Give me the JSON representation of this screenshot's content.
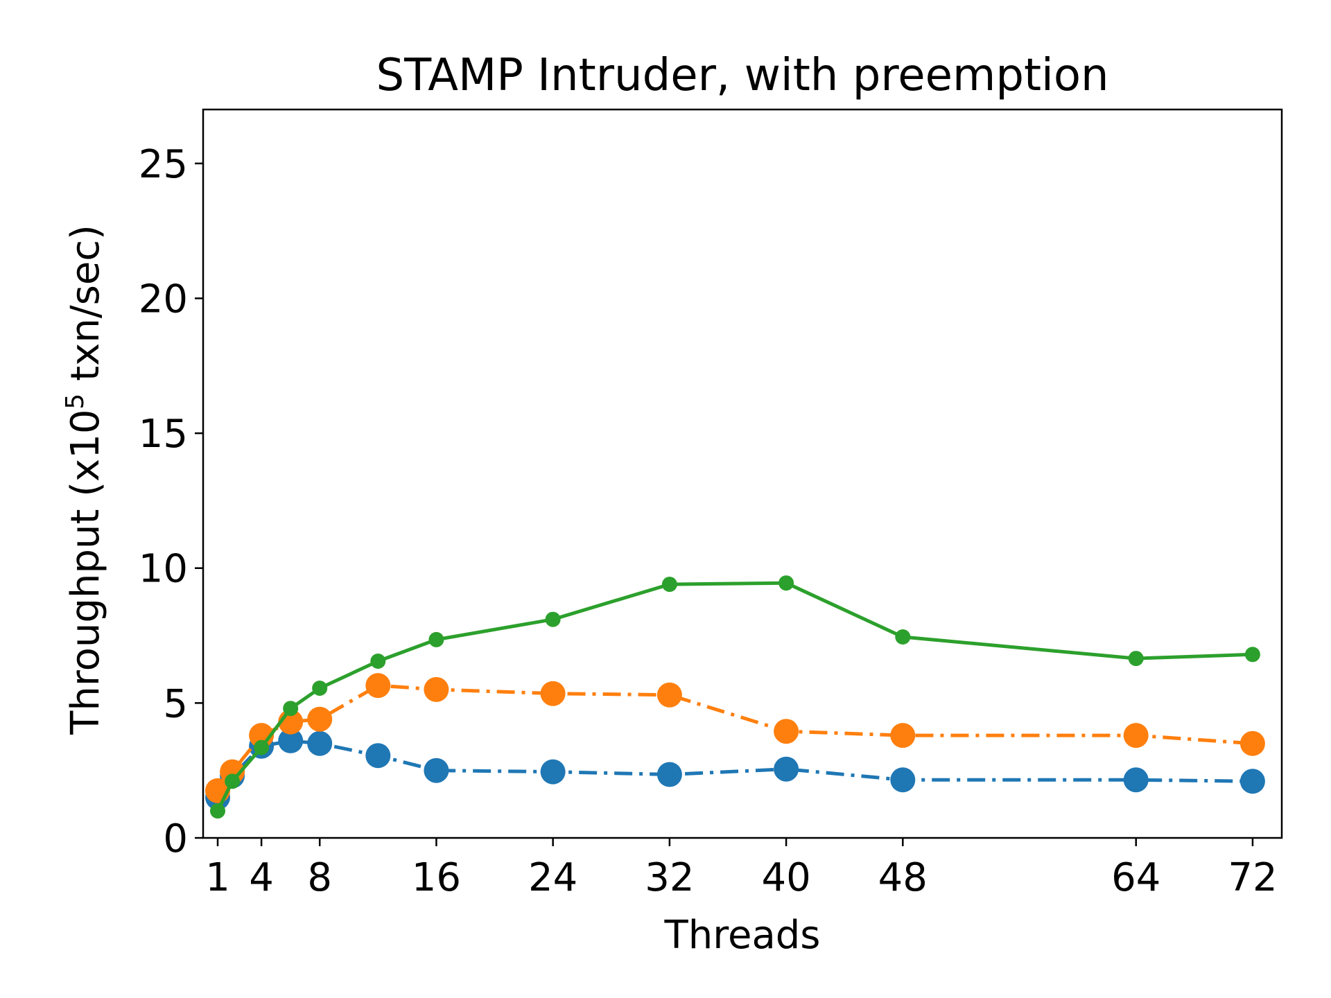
{
  "chart_data": {
    "type": "line",
    "title": "STAMP Intruder, with preemption",
    "xlabel": "Threads",
    "ylabel": {
      "main": "Throughput (x10",
      "superscript": "5",
      "rest": " txn/sec)"
    },
    "xlim": [
      0,
      74
    ],
    "ylim": [
      0,
      27
    ],
    "xticks": [
      1,
      4,
      8,
      16,
      24,
      32,
      40,
      48,
      64,
      72
    ],
    "yticks": [
      0,
      5,
      10,
      15,
      20,
      25
    ],
    "grid": false,
    "legend": null,
    "series": [
      {
        "color": "#1f77b4",
        "linestyle": "dashdot",
        "marker": "large-circle",
        "x": [
          1,
          2,
          4,
          6,
          8,
          12,
          16,
          24,
          32,
          40,
          48,
          64,
          72
        ],
        "y": [
          1.5,
          2.3,
          3.4,
          3.6,
          3.5,
          3.05,
          2.5,
          2.45,
          2.35,
          2.55,
          2.15,
          2.15,
          2.1
        ]
      },
      {
        "color": "#ff7f0e",
        "linestyle": "dashdot",
        "marker": "large-circle",
        "x": [
          1,
          2,
          4,
          6,
          8,
          12,
          16,
          24,
          32,
          40,
          48,
          64,
          72
        ],
        "y": [
          1.75,
          2.45,
          3.8,
          4.3,
          4.4,
          5.65,
          5.5,
          5.35,
          5.3,
          3.95,
          3.8,
          3.8,
          3.5
        ]
      },
      {
        "color": "#2ca02c",
        "linestyle": "solid",
        "marker": "small-circle",
        "x": [
          1,
          2,
          4,
          6,
          8,
          12,
          16,
          24,
          32,
          40,
          48,
          64,
          72
        ],
        "y": [
          1.0,
          2.1,
          3.35,
          4.8,
          5.55,
          6.55,
          7.35,
          8.1,
          9.4,
          9.45,
          7.45,
          6.65,
          6.8
        ]
      }
    ]
  }
}
